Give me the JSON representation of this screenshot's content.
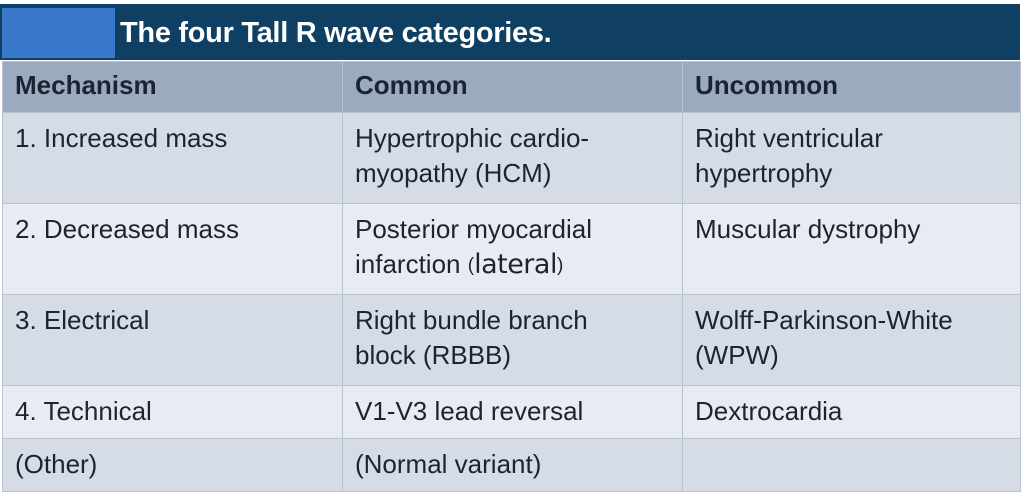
{
  "title": "The four Tall R wave categories.",
  "colors": {
    "title_bg": "#0f3f62",
    "title_accent": "#3a79c9",
    "header_bg": "#9aabbf",
    "row_odd": "#d5dce6",
    "row_even": "#e8ecf2"
  },
  "table": {
    "headers": [
      "Mechanism",
      "Common",
      "Uncommon"
    ],
    "rows": [
      {
        "mechanism": "1. Increased mass",
        "common": "Hypertrophic cardio-myopathy (HCM)",
        "common_l1": "Hypertrophic cardio-",
        "common_l2": "myopathy (HCM)",
        "uncommon_l1": "Right ventricular",
        "uncommon_l2": "hypertrophy"
      },
      {
        "mechanism": "2. Decreased mass",
        "common_l1": "Posterior myocardial",
        "common_l2": "infarction",
        "common_note": "lateral",
        "uncommon_l1": "Muscular dystrophy",
        "uncommon_l2": ""
      },
      {
        "mechanism": "3. Electrical",
        "common_l1": "Right bundle branch",
        "common_l2": "block (RBBB)",
        "uncommon_l1": "Wolff-Parkinson-White",
        "uncommon_l2": "(WPW)"
      },
      {
        "mechanism": "4. Technical",
        "common_l1": "V1-V3 lead reversal",
        "uncommon_l1": "Dextrocardia"
      },
      {
        "mechanism": "(Other)",
        "common_l1": "(Normal variant)",
        "uncommon_l1": ""
      }
    ]
  }
}
